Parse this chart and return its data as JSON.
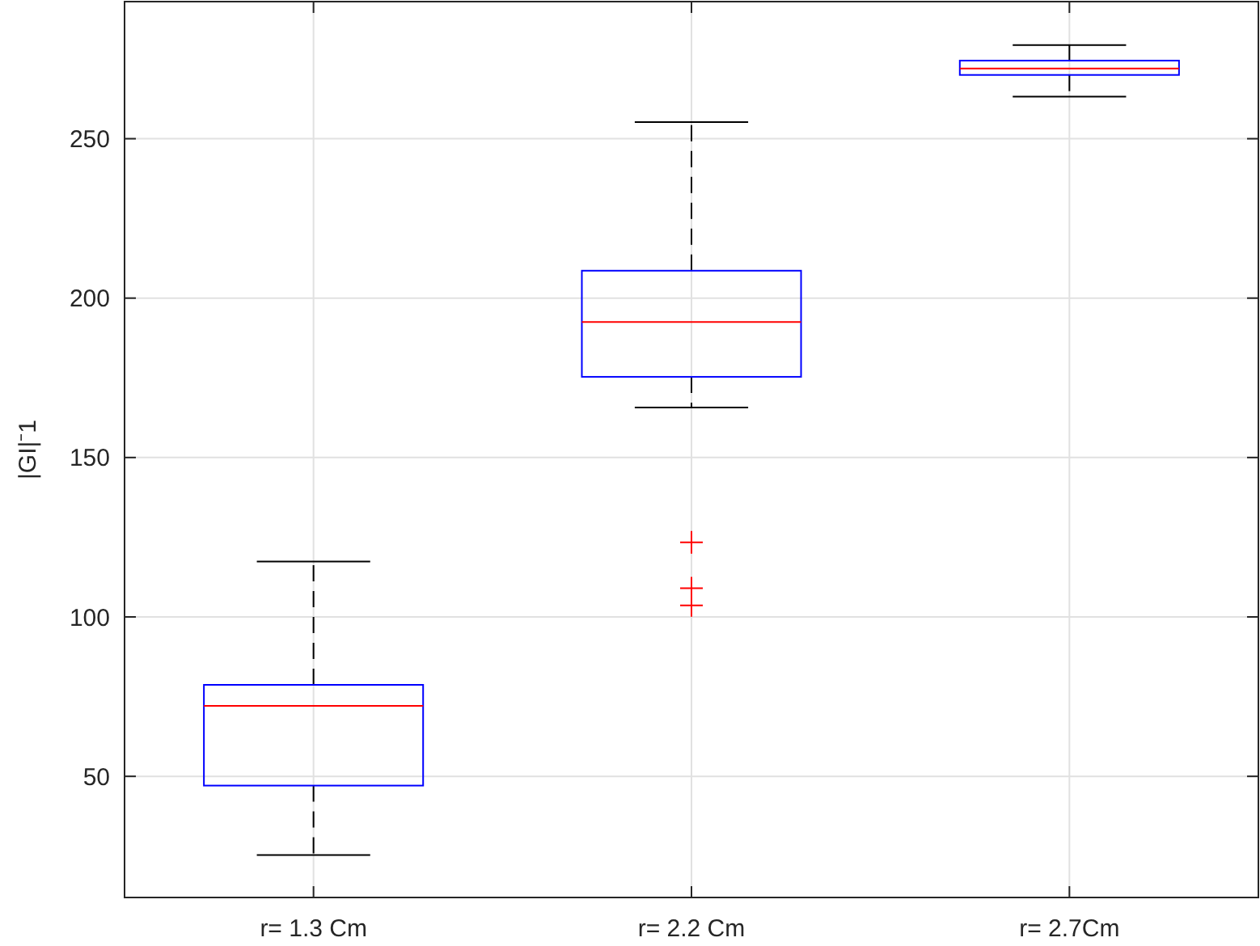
{
  "chart_data": {
    "type": "box",
    "ylabel": "|GI|⁻1",
    "categories": [
      "r= 1.3 Cm",
      "r= 2.2 Cm",
      "r= 2.7Cm"
    ],
    "boxes": [
      {
        "low": 25.3,
        "q1": 47.1,
        "median": 72.1,
        "q3": 78.7,
        "high": 117.4
      },
      {
        "low": 165.7,
        "q1": 175.3,
        "median": 192.5,
        "q3": 208.6,
        "high": 255.2,
        "outliers": [
          123.4,
          109,
          103.6
        ]
      },
      {
        "low": 263.2,
        "q1": 270,
        "median": 272,
        "q3": 274.5,
        "high": 279.4
      }
    ],
    "ylim": [
      12,
      293
    ],
    "yticks": [
      50,
      100,
      150,
      200,
      250
    ],
    "grid": true
  }
}
